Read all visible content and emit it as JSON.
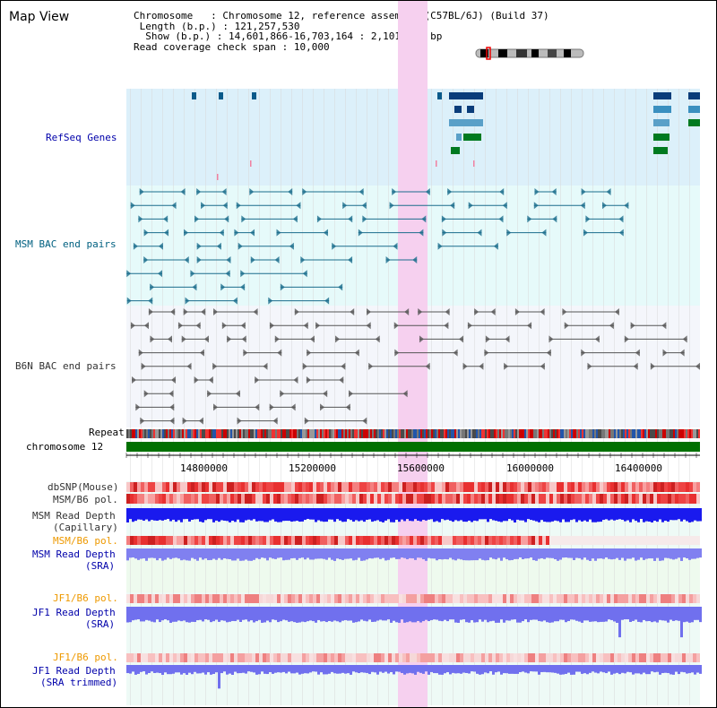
{
  "app": {
    "title": "Map View"
  },
  "info": {
    "chromosome_label": "Chromosome   ",
    "chromosome_value": "Chromosome 12, reference assembly (C57BL/6J) (Build 37)",
    "length_label": "Length (b.p.)",
    "length_value": "121,257,530",
    "show_label": "Show (b.p.)",
    "show_value": "14,601,866-16,703,164 : 2,101,299 bp",
    "read_label": "Read coverage check span",
    "read_value": "10,000"
  },
  "tracks": {
    "refseq": "RefSeq Genes",
    "msm_bac": "MSM BAC end pairs",
    "b6n_bac": "B6N BAC end pairs",
    "repeat": "Repeat",
    "chromosome": "chromosome 12",
    "dbsnp": "dbSNP(Mouse)",
    "msm_pol_1": "MSM/B6 pol.",
    "msm_depth_cap_1": "MSM Read Depth",
    "msm_depth_cap_2": "(Capillary)",
    "msm_pol_2": "MSM/B6 pol.",
    "msm_depth_sra_1": "MSM Read Depth",
    "msm_depth_sra_2": "(SRA)",
    "jf1_pol_1": "JF1/B6 pol.",
    "jf1_depth_sra_1": "JF1 Read Depth",
    "jf1_depth_sra_2": "(SRA)",
    "jf1_pol_2": "JF1/B6 pol.",
    "jf1_depth_trim_1": "JF1 Read Depth",
    "jf1_depth_trim_2": "(SRA trimmed)"
  },
  "axis": {
    "ticks": [
      "14800000",
      "15200000",
      "15600000",
      "16000000",
      "16400000"
    ]
  },
  "colors": {
    "refseq_bg": "#dcf0fa",
    "bac_bg": "#e6fafa",
    "b6n_bg": "#f4f6fb",
    "highlight": "#f6d0ef",
    "msm_feature": "#1a6d8c",
    "b6n_feature": "#555555",
    "chromosome_bar": "#007000",
    "label_blue": "#0000aa",
    "label_teal": "#006080",
    "label_orange": "#ee9900",
    "label_gray": "#333333"
  }
}
